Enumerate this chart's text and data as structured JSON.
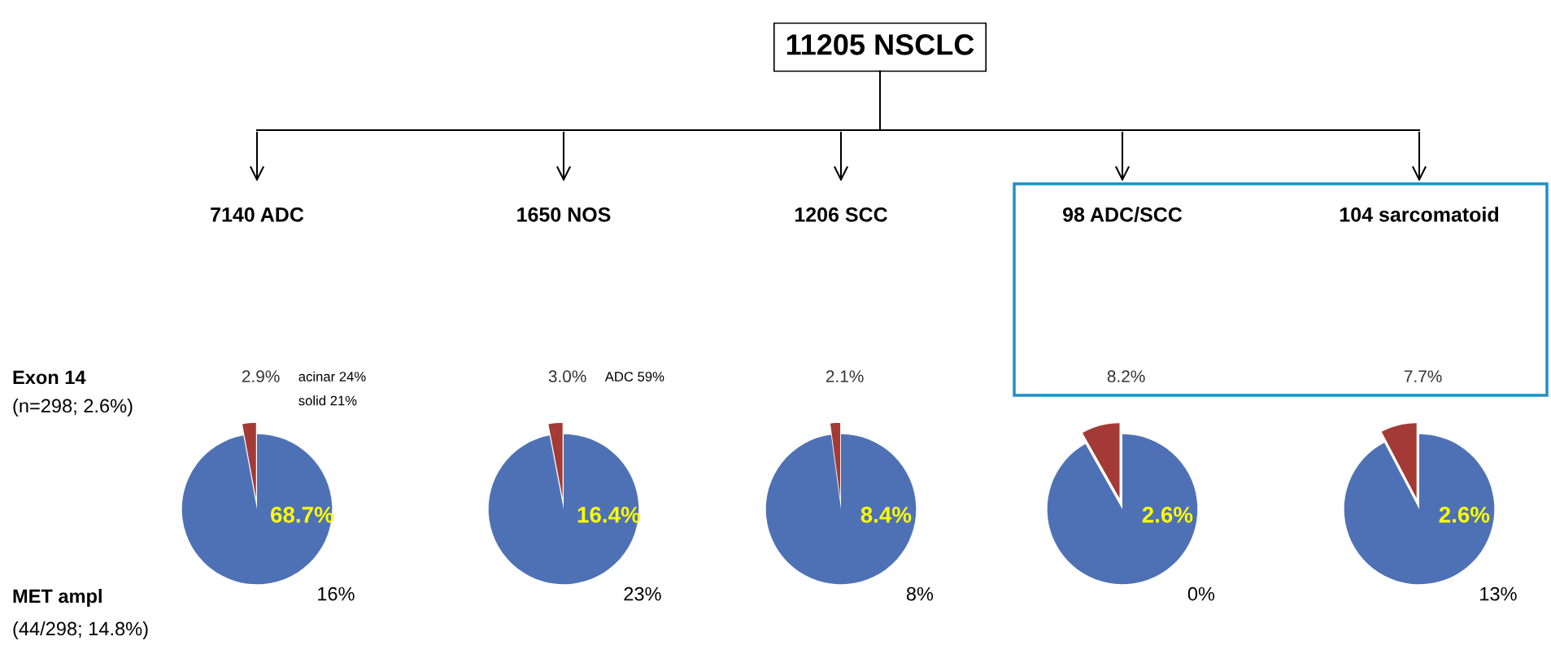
{
  "chart_data": [
    {
      "type": "other",
      "title": "11205 NSCLC",
      "annotations": [
        "Exon 14",
        "(n=298; 2.6%)",
        "MET ampl",
        "(44/298; 14.8%)"
      ]
    },
    {
      "type": "pie",
      "title": "7140 ADC",
      "categories": [
        null,
        null
      ],
      "values": [
        2.9,
        97.1
      ],
      "colors": [
        "#a33a35",
        "#4e71b6"
      ],
      "value_labels": [
        "2.9%",
        null
      ],
      "annotations": [
        "68.7%",
        "16%",
        "acinar 24%",
        "solid 21%"
      ]
    },
    {
      "type": "pie",
      "title": "1650 NOS",
      "categories": [
        null,
        null
      ],
      "values": [
        3.0,
        97.0
      ],
      "colors": [
        "#a33a35",
        "#4e71b6"
      ],
      "value_labels": [
        "3.0%",
        null
      ],
      "annotations": [
        "16.4%",
        "23%",
        "ADC 59%"
      ]
    },
    {
      "type": "pie",
      "title": "1206 SCC",
      "categories": [
        null,
        null
      ],
      "values": [
        2.1,
        97.9
      ],
      "colors": [
        "#a33a35",
        "#4e71b6"
      ],
      "value_labels": [
        "2.1%",
        null
      ],
      "annotations": [
        "8.4%",
        "8%"
      ]
    },
    {
      "type": "pie",
      "title": "98 ADC/SCC",
      "categories": [
        null,
        null
      ],
      "values": [
        8.2,
        91.8
      ],
      "colors": [
        "#a33a35",
        "#4e71b6"
      ],
      "value_labels": [
        "8.2%",
        null
      ],
      "annotations": [
        "2.6%",
        "0%"
      ]
    },
    {
      "type": "pie",
      "title": "104 sarcomatoid",
      "categories": [
        null,
        null
      ],
      "values": [
        7.7,
        92.3
      ],
      "colors": [
        "#a33a35",
        "#4e71b6"
      ],
      "value_labels": [
        "7.7%",
        null
      ],
      "annotations": [
        "2.6%",
        "13%"
      ]
    }
  ]
}
